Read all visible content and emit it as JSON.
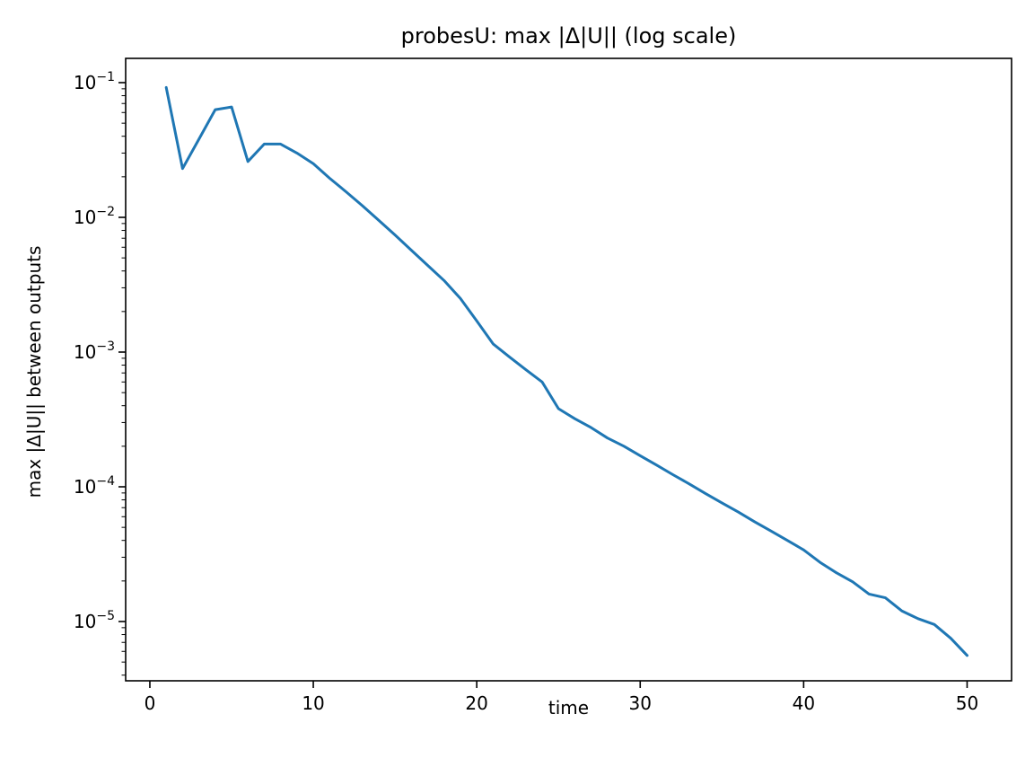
{
  "figure": {
    "background": "#ffffff",
    "text_color": "#000000"
  },
  "chart_data": {
    "type": "line",
    "title": "probesU: max |Δ|U|| (log scale)",
    "xlabel": "time",
    "ylabel": "max |Δ|U|| between outputs",
    "y_scale": "log",
    "grid": false,
    "legend": "none",
    "line_color": "#1f77b4",
    "line_width": 3,
    "xlim": [
      -1.48,
      52.72
    ],
    "ylim_log10": [
      -0.82,
      -5.44
    ],
    "x_ticks": [
      {
        "label": "0",
        "value": 0
      },
      {
        "label": "10",
        "value": 10
      },
      {
        "label": "20",
        "value": 20
      },
      {
        "label": "30",
        "value": 30
      },
      {
        "label": "40",
        "value": 40
      },
      {
        "label": "50",
        "value": 50
      }
    ],
    "y_ticks": [
      {
        "label_base": "10",
        "label_exp": "−1",
        "value": 0.1
      },
      {
        "label_base": "10",
        "label_exp": "−2",
        "value": 0.01
      },
      {
        "label_base": "10",
        "label_exp": "−3",
        "value": 0.001
      },
      {
        "label_base": "10",
        "label_exp": "−4",
        "value": 0.0001
      },
      {
        "label_base": "10",
        "label_exp": "−5",
        "value": 1e-05
      }
    ],
    "x": [
      1,
      2,
      3,
      4,
      5,
      6,
      7,
      8,
      9,
      10,
      11,
      12,
      13,
      14,
      15,
      16,
      17,
      18,
      19,
      20,
      21,
      22,
      23,
      24,
      25,
      26,
      27,
      28,
      29,
      30,
      31,
      32,
      33,
      34,
      35,
      36,
      37,
      38,
      39,
      40,
      41,
      42,
      43,
      44,
      45,
      46,
      47,
      48,
      49,
      50
    ],
    "values": [
      0.092,
      0.023,
      0.038,
      0.063,
      0.066,
      0.026,
      0.035,
      0.035,
      0.03,
      0.025,
      0.0195,
      0.0155,
      0.0122,
      0.0095,
      0.0074,
      0.0057,
      0.0044,
      0.0034,
      0.0025,
      0.0017,
      0.00115,
      0.00092,
      0.00074,
      0.0006,
      0.00038,
      0.00032,
      0.000275,
      0.00023,
      0.0002,
      0.00017,
      0.000145,
      0.000123,
      0.000105,
      8.9e-05,
      7.6e-05,
      6.5e-05,
      5.5e-05,
      4.7e-05,
      4e-05,
      3.4e-05,
      2.75e-05,
      2.3e-05,
      1.97e-05,
      1.6e-05,
      1.5e-05,
      1.2e-05,
      1.05e-05,
      9.5e-06,
      7.5e-06,
      5.6e-06
    ]
  }
}
